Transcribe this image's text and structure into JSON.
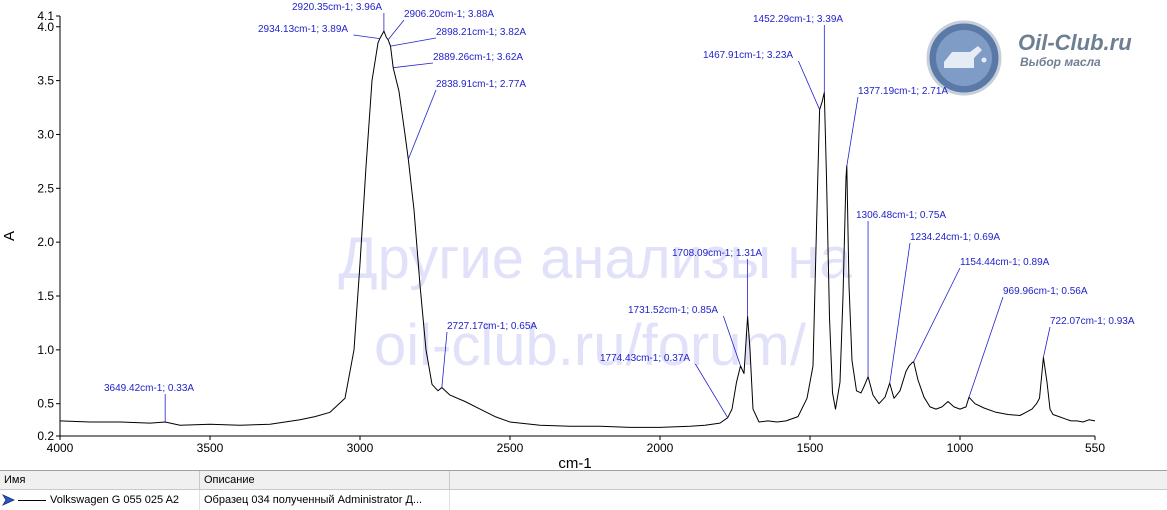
{
  "chart_data": {
    "type": "line",
    "xlabel": "cm-1",
    "ylabel": "A",
    "xlim": [
      4000,
      550
    ],
    "ylim": [
      0.2,
      4.1
    ],
    "x_ticks": [
      "4000",
      "3500",
      "3000",
      "2500",
      "2000",
      "1500",
      "1000",
      "550"
    ],
    "y_ticks": [
      "0.2",
      "0.5",
      "1.0",
      "1.5",
      "2.0",
      "2.5",
      "3.0",
      "3.5",
      "4.0",
      "4.1"
    ],
    "series": [
      {
        "name": "Volkswagen G 055 025 A2",
        "color": "#000000",
        "x": [
          4000,
          3900,
          3800,
          3700,
          3649.42,
          3600,
          3500,
          3400,
          3300,
          3200,
          3150,
          3100,
          3050,
          3020,
          3000,
          2980,
          2960,
          2940,
          2934.13,
          2920.35,
          2912,
          2906.2,
          2898.21,
          2889.26,
          2870,
          2850,
          2838.91,
          2820,
          2800,
          2780,
          2760,
          2740,
          2727.17,
          2700,
          2650,
          2600,
          2550,
          2500,
          2400,
          2300,
          2200,
          2100,
          2000,
          1900,
          1850,
          1800,
          1774.43,
          1760,
          1745,
          1731.52,
          1720,
          1708.09,
          1700,
          1690,
          1670,
          1640,
          1610,
          1580,
          1540,
          1510,
          1490,
          1475,
          1467.91,
          1460,
          1452.29,
          1445,
          1435,
          1425,
          1415,
          1400,
          1390,
          1380,
          1377.19,
          1370,
          1360,
          1345,
          1330,
          1320,
          1306.48,
          1290,
          1270,
          1250,
          1234.24,
          1220,
          1200,
          1180,
          1170,
          1160,
          1154.44,
          1140,
          1120,
          1100,
          1080,
          1060,
          1040,
          1020,
          1000,
          980,
          969.96,
          950,
          920,
          880,
          840,
          800,
          780,
          760,
          745,
          735,
          722.07,
          710,
          700,
          690,
          670,
          650,
          630,
          610,
          590,
          570,
          550
        ],
        "y": [
          0.34,
          0.33,
          0.33,
          0.32,
          0.33,
          0.3,
          0.31,
          0.3,
          0.31,
          0.35,
          0.38,
          0.42,
          0.55,
          1.0,
          1.8,
          2.7,
          3.5,
          3.85,
          3.89,
          3.96,
          3.9,
          3.88,
          3.82,
          3.62,
          3.4,
          3.0,
          2.77,
          2.3,
          1.6,
          1.0,
          0.68,
          0.62,
          0.65,
          0.58,
          0.52,
          0.45,
          0.38,
          0.33,
          0.3,
          0.29,
          0.29,
          0.28,
          0.28,
          0.29,
          0.3,
          0.32,
          0.37,
          0.45,
          0.7,
          0.85,
          0.78,
          1.31,
          1.0,
          0.45,
          0.33,
          0.34,
          0.33,
          0.34,
          0.38,
          0.55,
          0.85,
          2.5,
          3.23,
          3.3,
          3.39,
          2.6,
          1.3,
          0.6,
          0.45,
          0.7,
          1.5,
          2.6,
          2.71,
          1.6,
          0.9,
          0.62,
          0.6,
          0.66,
          0.75,
          0.58,
          0.5,
          0.56,
          0.69,
          0.55,
          0.62,
          0.8,
          0.85,
          0.88,
          0.89,
          0.72,
          0.56,
          0.47,
          0.45,
          0.47,
          0.52,
          0.47,
          0.45,
          0.47,
          0.56,
          0.5,
          0.46,
          0.42,
          0.4,
          0.39,
          0.42,
          0.45,
          0.5,
          0.55,
          0.93,
          0.7,
          0.45,
          0.4,
          0.38,
          0.36,
          0.34,
          0.34,
          0.33,
          0.35,
          0.34
        ]
      }
    ],
    "annotations": [
      {
        "x": 3649.42,
        "y": 0.33,
        "label": "3649.42cm-1; 0.33A"
      },
      {
        "x": 2934.13,
        "y": 3.89,
        "label": "2934.13cm-1; 3.89A"
      },
      {
        "x": 2920.35,
        "y": 3.96,
        "label": "2920.35cm-1; 3.96A"
      },
      {
        "x": 2906.2,
        "y": 3.88,
        "label": "2906.20cm-1; 3.88A"
      },
      {
        "x": 2898.21,
        "y": 3.82,
        "label": "2898.21cm-1; 3.82A"
      },
      {
        "x": 2889.26,
        "y": 3.62,
        "label": "2889.26cm-1; 3.62A"
      },
      {
        "x": 2838.91,
        "y": 2.77,
        "label": "2838.91cm-1; 2.77A"
      },
      {
        "x": 2727.17,
        "y": 0.65,
        "label": "2727.17cm-1; 0.65A"
      },
      {
        "x": 1774.43,
        "y": 0.37,
        "label": "1774.43cm-1; 0.37A"
      },
      {
        "x": 1731.52,
        "y": 0.85,
        "label": "1731.52cm-1; 0.85A"
      },
      {
        "x": 1708.09,
        "y": 1.31,
        "label": "1708.09cm-1; 1.31A"
      },
      {
        "x": 1467.91,
        "y": 3.23,
        "label": "1467.91cm-1; 3.23A"
      },
      {
        "x": 1452.29,
        "y": 3.39,
        "label": "1452.29cm-1; 3.39A"
      },
      {
        "x": 1377.19,
        "y": 2.71,
        "label": "1377.19cm-1; 2.71A"
      },
      {
        "x": 1306.48,
        "y": 0.75,
        "label": "1306.48cm-1; 0.75A"
      },
      {
        "x": 1234.24,
        "y": 0.69,
        "label": "1234.24cm-1; 0.69A"
      },
      {
        "x": 1154.44,
        "y": 0.89,
        "label": "1154.44cm-1; 0.89A"
      },
      {
        "x": 969.96,
        "y": 0.56,
        "label": "969.96cm-1; 0.56A"
      },
      {
        "x": 722.07,
        "y": 0.93,
        "label": "722.07cm-1; 0.93A"
      }
    ],
    "grid": false
  },
  "watermark": {
    "line1": "Другие анализы на",
    "line2": "oil-club.ru/forum/"
  },
  "logo": {
    "name": "Oil-Club.ru",
    "tagline": "Выбор масла"
  },
  "legend_table": {
    "headers": [
      "Имя",
      "Описание"
    ],
    "rows": [
      {
        "name": "Volkswagen G 055 025 A2",
        "description": "Образец 034 полученный Administrator Д..."
      }
    ]
  }
}
